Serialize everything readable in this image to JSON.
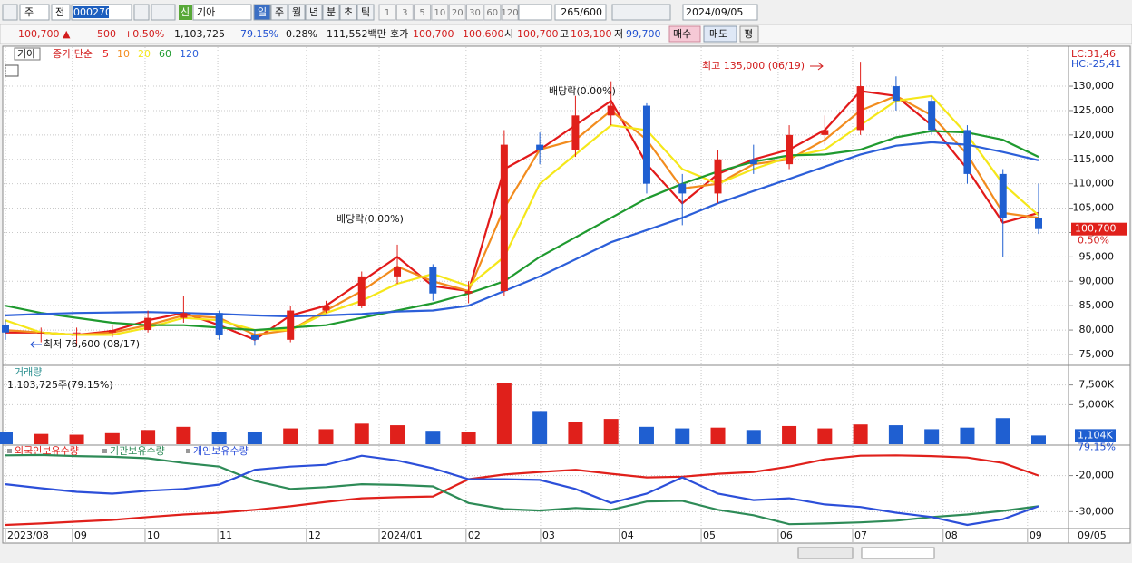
{
  "toolbar": {
    "market": "주",
    "prev": "전",
    "code": "000270",
    "badge": "신",
    "name": "기아",
    "periods": [
      "일",
      "주",
      "월",
      "년",
      "분",
      "초",
      "틱"
    ],
    "intervals": [
      "1",
      "3",
      "5",
      "10",
      "20",
      "30",
      "60",
      "120"
    ],
    "count": "265/600",
    "date": "2024/09/05"
  },
  "quote": {
    "price": "100,700 ▲",
    "change": "500",
    "rate": "+0.50%",
    "volume": "1,103,725",
    "vol_rate": "79.15%",
    "turnover": "0.28%",
    "amount": "111,552백만",
    "bid_label": "호가",
    "ask": "100,700",
    "bid": "100,600",
    "open_label": "시",
    "open": "100,700",
    "high_label": "고",
    "high": "103,100",
    "low_label": "저",
    "low": "99,700",
    "buy": "매수",
    "sell": "매도",
    "eval": "평"
  },
  "chart_data": [
    {
      "type": "candlestick",
      "title": "기아",
      "legend_title": "종가 단순",
      "xlim": [
        0,
        29
      ],
      "ylim": [
        72950,
        138000
      ],
      "grid": true,
      "up_color": "#e0201b",
      "down_color": "#1f5fd1",
      "open": [
        81000,
        79500,
        79500,
        79500,
        80000,
        82500,
        83500,
        79000,
        78000,
        84000,
        85000,
        91000,
        93000,
        87500,
        88000,
        118000,
        117000,
        124000,
        126000,
        110000,
        108000,
        115000,
        114000,
        120000,
        121000,
        130000,
        127000,
        121000,
        112000,
        103000
      ],
      "high": [
        82000,
        80500,
        80500,
        81000,
        84000,
        87000,
        84000,
        80000,
        85000,
        86000,
        92000,
        97500,
        93500,
        90000,
        121000,
        120500,
        128000,
        131000,
        126500,
        112000,
        117000,
        118000,
        122000,
        124000,
        135000,
        132000,
        128000,
        122000,
        113000,
        110000
      ],
      "low": [
        78000,
        77500,
        76600,
        78500,
        79500,
        81500,
        78000,
        76800,
        77500,
        83500,
        84500,
        89500,
        86000,
        85500,
        87000,
        114000,
        115500,
        122000,
        108000,
        101500,
        106000,
        112000,
        113000,
        118000,
        120000,
        125000,
        120000,
        110000,
        95000,
        99700
      ],
      "close": [
        79500,
        79500,
        79500,
        80000,
        82500,
        83500,
        79000,
        78000,
        84000,
        85000,
        91000,
        93000,
        87500,
        88000,
        118000,
        117000,
        124000,
        126000,
        110000,
        108000,
        115000,
        114000,
        120000,
        121000,
        130000,
        127000,
        121000,
        112000,
        103000,
        100700
      ],
      "series": [
        {
          "name": "5",
          "color": "#e21a1a",
          "values": [
            79500,
            79500,
            79000,
            79800,
            82000,
            83500,
            81000,
            78000,
            83000,
            85000,
            90000,
            95000,
            89000,
            88000,
            113000,
            117000,
            122000,
            127000,
            114000,
            106000,
            112000,
            115000,
            117000,
            121000,
            129000,
            128000,
            122000,
            113000,
            102000,
            104000
          ]
        },
        {
          "name": "10",
          "color": "#f28c1e",
          "values": [
            80000,
            79500,
            79000,
            79500,
            81000,
            83000,
            82500,
            79000,
            80000,
            84000,
            88000,
            93000,
            90000,
            88000,
            105000,
            117000,
            119000,
            125000,
            119000,
            109000,
            110000,
            114000,
            115000,
            119000,
            125000,
            128000,
            124000,
            116000,
            104000,
            103000
          ]
        },
        {
          "name": "20",
          "color": "#f5e71a",
          "values": [
            82000,
            79500,
            79000,
            79000,
            80500,
            82500,
            82000,
            80000,
            80000,
            83500,
            86000,
            89500,
            91500,
            89000,
            95000,
            110000,
            116000,
            122000,
            121000,
            113000,
            110000,
            113000,
            115500,
            117000,
            122000,
            127000,
            128000,
            120000,
            110000,
            103500
          ]
        },
        {
          "name": "60",
          "color": "#1f9a2f",
          "values": [
            85000,
            83500,
            82500,
            81500,
            81000,
            81000,
            80500,
            80000,
            80500,
            81000,
            82500,
            84000,
            85500,
            87500,
            90000,
            95000,
            99000,
            103000,
            107000,
            110000,
            112500,
            114500,
            115800,
            116000,
            117000,
            119500,
            120800,
            120500,
            119000,
            115500
          ]
        },
        {
          "name": "120",
          "color": "#2c5fd9",
          "values": [
            83000,
            83300,
            83500,
            83600,
            83700,
            83500,
            83300,
            83000,
            82800,
            83000,
            83300,
            83800,
            84000,
            85000,
            88000,
            91000,
            94500,
            98000,
            100500,
            103000,
            106000,
            108500,
            111000,
            113500,
            116000,
            117800,
            118500,
            118000,
            116500,
            114800
          ]
        }
      ],
      "yticks": [
        {
          "value": 75000,
          "label": "75,000"
        },
        {
          "value": 80000,
          "label": "80,000"
        },
        {
          "value": 85000,
          "label": "85,000"
        },
        {
          "value": 90000,
          "label": "90,000"
        },
        {
          "value": 95000,
          "label": "95,000"
        },
        {
          "value": 100000,
          "label": "100,000"
        },
        {
          "value": 105000,
          "label": "105,000"
        },
        {
          "value": 110000,
          "label": "110,000"
        },
        {
          "value": 115000,
          "label": "115,000"
        },
        {
          "value": 120000,
          "label": "120,000"
        },
        {
          "value": 125000,
          "label": "125,000"
        },
        {
          "value": 130000,
          "label": "130,000"
        }
      ],
      "lc": "LC:31,46",
      "hc": "HC:-25,41",
      "last_label": "100,700",
      "last_change": "0.50%",
      "annotations": [
        "최고 135,000 (06/19)",
        "배당락(0.00%)",
        "배당락(0.00%)",
        "최저 76,600 (08/17)"
      ]
    },
    {
      "type": "bar",
      "title": "거래량",
      "subtitle": "1,103,725주(79.15%)",
      "xlim": [
        0,
        29
      ],
      "ylim": [
        0,
        9750000
      ],
      "grid": true,
      "up_color": "#e0201b",
      "down_color": "#1f5fd1",
      "values": [
        1500000,
        1300000,
        1200000,
        1400000,
        1800000,
        2200000,
        1600000,
        1500000,
        2000000,
        1900000,
        2600000,
        2400000,
        1700000,
        1500000,
        7800000,
        4200000,
        2800000,
        3200000,
        2200000,
        2000000,
        2100000,
        1800000,
        2300000,
        2000000,
        2500000,
        2400000,
        1900000,
        2100000,
        3300000,
        1103725
      ],
      "yticks": [
        {
          "value": 5000000,
          "label": "5,000K"
        },
        {
          "value": 7500000,
          "label": "7,500K"
        }
      ],
      "last_label": "1,104K",
      "last_rate": "79.15%"
    },
    {
      "type": "line",
      "xlim": [
        0,
        29
      ],
      "ylim": [
        -34700,
        -11800
      ],
      "grid": true,
      "series": [
        {
          "name": "외국인보유수량",
          "color": "#e0201b",
          "values": [
            -33700,
            -33300,
            -32800,
            -32300,
            -31500,
            -30800,
            -30300,
            -29500,
            -28500,
            -27300,
            -26300,
            -26000,
            -25800,
            -21000,
            -19700,
            -19000,
            -18400,
            -19500,
            -20500,
            -20300,
            -19500,
            -19000,
            -17500,
            -15500,
            -14500,
            -14400,
            -14600,
            -15000,
            -16500,
            -20000
          ]
        },
        {
          "name": "기관보유수량",
          "color": "#2e8b57",
          "values": [
            -14400,
            -14300,
            -14600,
            -14800,
            -15200,
            -16500,
            -17500,
            -21500,
            -23700,
            -23200,
            -22400,
            -22600,
            -23000,
            -27600,
            -29300,
            -29700,
            -29000,
            -29500,
            -27200,
            -27000,
            -29500,
            -31000,
            -33500,
            -33300,
            -33000,
            -32500,
            -31500,
            -30800,
            -29800,
            -28500
          ]
        },
        {
          "name": "개인보유수량",
          "color": "#2c4fd9",
          "values": [
            -22400,
            -23500,
            -24500,
            -25000,
            -24200,
            -23700,
            -22500,
            -18400,
            -17500,
            -17000,
            -14500,
            -15800,
            -18000,
            -21000,
            -21000,
            -21200,
            -23700,
            -27600,
            -25000,
            -20500,
            -25000,
            -26800,
            -26300,
            -28000,
            -28700,
            -30300,
            -31500,
            -33700,
            -32100,
            -28500
          ]
        }
      ],
      "yticks": [
        {
          "value": -30000,
          "label": "-30,000"
        },
        {
          "value": -20000,
          "label": "-20,000"
        }
      ],
      "xticks": [
        {
          "value": 0,
          "label": "2023/08"
        },
        {
          "value": 1.88,
          "label": "09"
        },
        {
          "value": 3.92,
          "label": "10"
        },
        {
          "value": 5.96,
          "label": "11"
        },
        {
          "value": 8.45,
          "label": "12"
        },
        {
          "value": 10.49,
          "label": "2024/01"
        },
        {
          "value": 12.93,
          "label": "02"
        },
        {
          "value": 15.02,
          "label": "03"
        },
        {
          "value": 17.23,
          "label": "04"
        },
        {
          "value": 19.53,
          "label": "05"
        },
        {
          "value": 21.69,
          "label": "06"
        },
        {
          "value": 23.78,
          "label": "07"
        },
        {
          "value": 26.32,
          "label": "08"
        },
        {
          "value": 28.69,
          "label": "09"
        }
      ],
      "last_date": "09/05"
    }
  ]
}
